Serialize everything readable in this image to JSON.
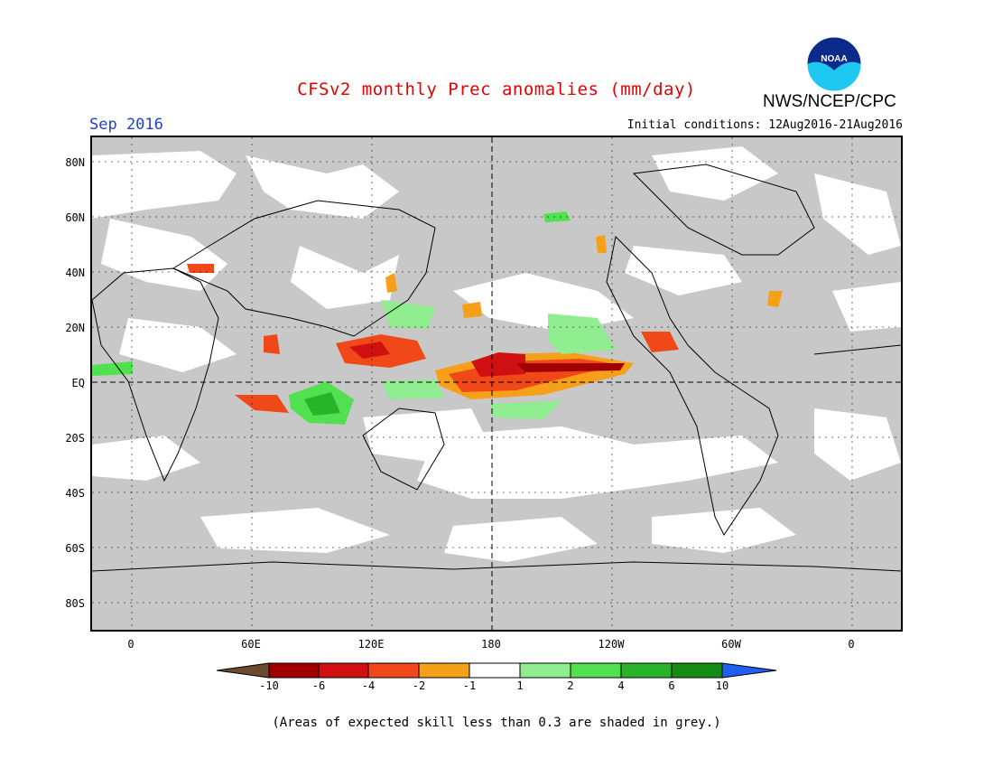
{
  "title": "CFSv2 monthly Prec anomalies (mm/day)",
  "agency": "NWS/NCEP/CPC",
  "logo_text": "NOAA",
  "month": "Sep 2016",
  "initial_conditions": "Initial conditions: 12Aug2016-21Aug2016",
  "lat_labels": [
    "80N",
    "60N",
    "40N",
    "20N",
    "EQ",
    "20S",
    "40S",
    "60S",
    "80S"
  ],
  "lon_labels": [
    "0",
    "60E",
    "120E",
    "180",
    "120W",
    "60W",
    "0"
  ],
  "colorbar": {
    "labels": [
      "-10",
      "-6",
      "-4",
      "-2",
      "-1",
      "1",
      "2",
      "4",
      "6",
      "10"
    ],
    "colors": {
      "lt_minus10": "#6b4a2e",
      "m10_m6": "#a00000",
      "m6_m4": "#d01010",
      "m4_m2": "#f04818",
      "m2_m1": "#f5a018",
      "m1_1": "#ffffff",
      "1_2": "#90ee90",
      "2_4": "#50e050",
      "4_6": "#28b428",
      "6_10": "#148c14",
      "gt10": "#2060f0"
    }
  },
  "footnote": "(Areas of expected skill less than 0.3 are shaded in grey.)"
}
